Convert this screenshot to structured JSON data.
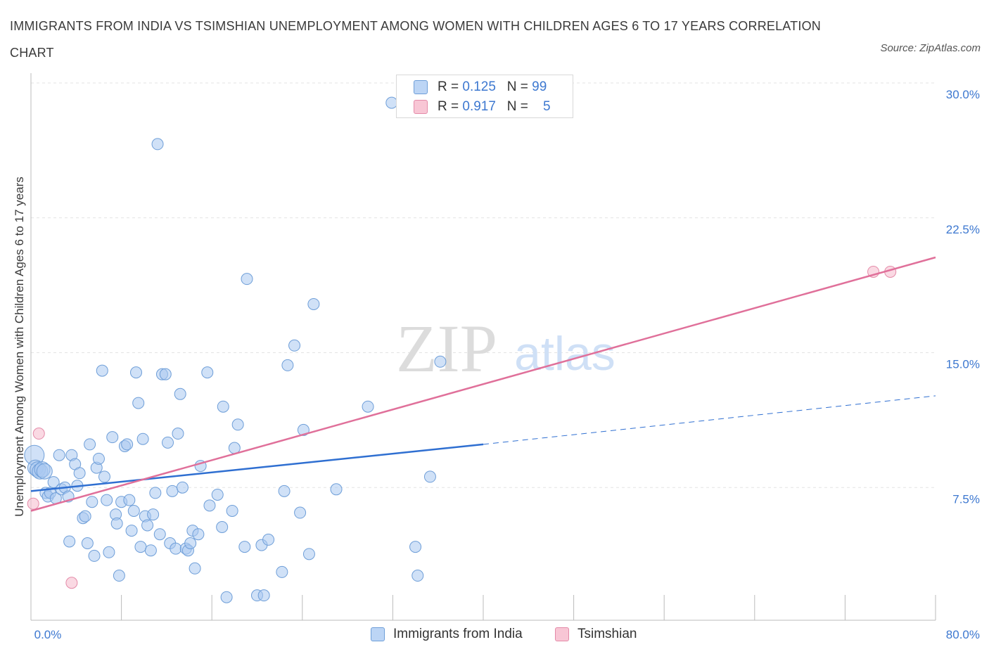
{
  "title": "IMMIGRANTS FROM INDIA VS TSIMSHIAN UNEMPLOYMENT AMONG WOMEN WITH CHILDREN AGES 6 TO 17 YEARS CORRELATION CHART",
  "source": "Source: ZipAtlas.com",
  "watermark": {
    "zip": "ZIP",
    "atlas": "atlas"
  },
  "legend": {
    "rows": [
      {
        "r_label": "R = ",
        "r_value": "0.125",
        "n_label": "N = ",
        "n_value": "99"
      },
      {
        "r_label": "R = ",
        "r_value": "0.917",
        "n_label": "N = ",
        "n_value": "5"
      }
    ]
  },
  "bottom_legend": {
    "india": "Immigrants from India",
    "tsimshian": "Tsimshian"
  },
  "colors": {
    "india_fill": "#a9c8f0",
    "india_stroke": "#6e9ed8",
    "india_line": "#2f6fd1",
    "tsim_fill": "#f6bfd0",
    "tsim_stroke": "#e48aa8",
    "tsim_line": "#e0709a",
    "tick": "#3d78d0",
    "grid": "#e3e3e3"
  },
  "chart_data": {
    "type": "scatter",
    "title": "IMMIGRANTS FROM INDIA VS TSIMSHIAN UNEMPLOYMENT AMONG WOMEN WITH CHILDREN AGES 6 TO 17 YEARS CORRELATION CHART",
    "xlabel": "",
    "ylabel": "Unemployment Among Women with Children Ages 6 to 17 years",
    "xlim": [
      0,
      80
    ],
    "ylim": [
      0,
      30
    ],
    "x_ticks": [
      0,
      80
    ],
    "x_tick_labels": [
      "0.0%",
      "80.0%"
    ],
    "y_ticks": [
      7.5,
      15,
      22.5,
      30
    ],
    "y_tick_labels": [
      "7.5%",
      "15.0%",
      "22.5%",
      "30.0%"
    ],
    "grid": true,
    "legend_position": "top-center",
    "series": [
      {
        "name": "Immigrants from India",
        "R": 0.125,
        "N": 99,
        "trend": {
          "x": [
            0,
            40
          ],
          "y": [
            7.3,
            9.9
          ],
          "dashed_extension": {
            "x": [
              40,
              80
            ],
            "y": [
              9.9,
              12.6
            ]
          }
        },
        "points": [
          [
            0.3,
            9.3
          ],
          [
            0.4,
            8.6
          ],
          [
            0.6,
            8.5
          ],
          [
            0.8,
            8.4
          ],
          [
            1.0,
            8.5
          ],
          [
            1.2,
            8.4
          ],
          [
            1.3,
            7.2
          ],
          [
            1.5,
            7.0
          ],
          [
            1.7,
            7.2
          ],
          [
            2.0,
            7.8
          ],
          [
            2.2,
            6.9
          ],
          [
            2.5,
            9.3
          ],
          [
            2.7,
            7.4
          ],
          [
            3.0,
            7.5
          ],
          [
            3.3,
            7.0
          ],
          [
            3.4,
            4.5
          ],
          [
            3.6,
            9.3
          ],
          [
            3.9,
            8.8
          ],
          [
            4.1,
            7.6
          ],
          [
            4.3,
            8.3
          ],
          [
            4.6,
            5.8
          ],
          [
            4.8,
            5.9
          ],
          [
            5.0,
            4.4
          ],
          [
            5.2,
            9.9
          ],
          [
            5.4,
            6.7
          ],
          [
            5.6,
            3.7
          ],
          [
            5.8,
            8.6
          ],
          [
            6.0,
            9.1
          ],
          [
            6.3,
            14.0
          ],
          [
            6.5,
            8.1
          ],
          [
            6.7,
            6.8
          ],
          [
            6.9,
            3.9
          ],
          [
            7.2,
            10.3
          ],
          [
            7.5,
            6.0
          ],
          [
            7.6,
            5.5
          ],
          [
            7.8,
            2.6
          ],
          [
            8.0,
            6.7
          ],
          [
            8.3,
            9.8
          ],
          [
            8.5,
            9.9
          ],
          [
            8.7,
            6.8
          ],
          [
            8.9,
            5.1
          ],
          [
            9.1,
            6.2
          ],
          [
            9.3,
            13.9
          ],
          [
            9.5,
            12.2
          ],
          [
            9.7,
            4.2
          ],
          [
            9.9,
            10.2
          ],
          [
            10.1,
            5.9
          ],
          [
            10.3,
            5.4
          ],
          [
            10.6,
            4.0
          ],
          [
            10.8,
            6.0
          ],
          [
            11.0,
            7.2
          ],
          [
            11.2,
            26.6
          ],
          [
            11.4,
            4.9
          ],
          [
            11.6,
            13.8
          ],
          [
            11.9,
            13.8
          ],
          [
            12.1,
            10.0
          ],
          [
            12.3,
            4.4
          ],
          [
            12.5,
            7.3
          ],
          [
            12.8,
            4.1
          ],
          [
            13.0,
            10.5
          ],
          [
            13.2,
            12.7
          ],
          [
            13.4,
            7.5
          ],
          [
            13.7,
            4.1
          ],
          [
            13.9,
            4.0
          ],
          [
            14.1,
            4.4
          ],
          [
            14.3,
            5.1
          ],
          [
            14.5,
            3.0
          ],
          [
            14.8,
            4.9
          ],
          [
            15.0,
            8.7
          ],
          [
            15.6,
            13.9
          ],
          [
            15.8,
            6.5
          ],
          [
            16.5,
            7.1
          ],
          [
            16.9,
            5.3
          ],
          [
            17.0,
            12.0
          ],
          [
            17.3,
            1.4
          ],
          [
            17.8,
            6.2
          ],
          [
            18.0,
            9.7
          ],
          [
            18.3,
            11.0
          ],
          [
            18.9,
            4.2
          ],
          [
            19.1,
            19.1
          ],
          [
            20.0,
            1.5
          ],
          [
            20.4,
            4.3
          ],
          [
            20.6,
            1.5
          ],
          [
            21.0,
            4.6
          ],
          [
            22.2,
            2.8
          ],
          [
            22.4,
            7.3
          ],
          [
            22.7,
            14.3
          ],
          [
            23.3,
            15.4
          ],
          [
            23.8,
            6.1
          ],
          [
            24.1,
            10.7
          ],
          [
            24.6,
            3.8
          ],
          [
            25.0,
            17.7
          ],
          [
            27.0,
            7.4
          ],
          [
            29.8,
            12.0
          ],
          [
            31.9,
            28.9
          ],
          [
            34.0,
            4.2
          ],
          [
            34.2,
            2.6
          ],
          [
            35.3,
            8.1
          ],
          [
            36.2,
            14.5
          ]
        ]
      },
      {
        "name": "Tsimshian",
        "R": 0.917,
        "N": 5,
        "trend": {
          "x": [
            0,
            80
          ],
          "y": [
            6.2,
            20.3
          ]
        },
        "points": [
          [
            0.2,
            6.6
          ],
          [
            0.7,
            10.5
          ],
          [
            3.6,
            2.2
          ],
          [
            74.5,
            19.5
          ],
          [
            76.0,
            19.5
          ]
        ]
      }
    ]
  }
}
